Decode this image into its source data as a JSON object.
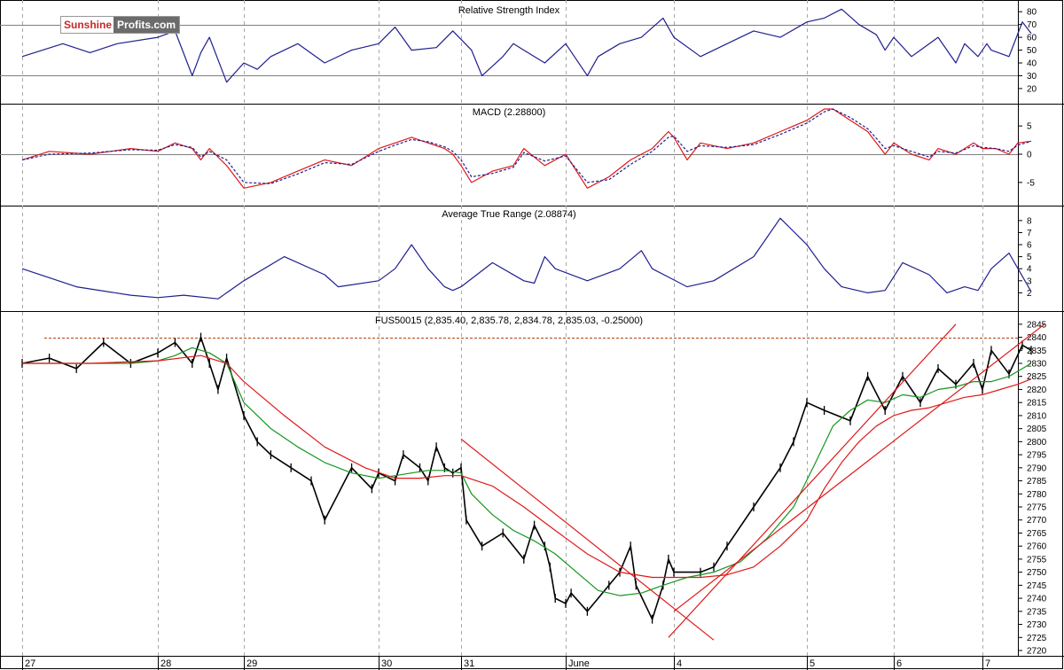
{
  "logo": {
    "part1": "Sunshine",
    "part2": "Profits.com"
  },
  "colors": {
    "blue": "#1f1f8f",
    "red": "#e01818",
    "green": "#14961e",
    "black": "#000000",
    "grid": "#a8a8a8",
    "ref": "#7f7f7f",
    "resistance": "#b7410e"
  },
  "x_axis": {
    "labels": [
      "27",
      "28",
      "29",
      "30",
      "31",
      "June",
      "4",
      "5",
      "6",
      "7"
    ],
    "last_index": 9.55
  },
  "chart_data": [
    {
      "type": "line",
      "title": "Relative Strength Index",
      "y_ticks": [
        20,
        30,
        40,
        50,
        60,
        70,
        80
      ],
      "ylim": [
        13,
        85
      ],
      "ref_lines": [
        30,
        70
      ],
      "series": [
        {
          "color": "#1f1f8f",
          "x": [
            0,
            0.3,
            0.5,
            0.7,
            1.0,
            1.2,
            1.4,
            1.5,
            1.6,
            1.8,
            2.0,
            2.1,
            2.2,
            2.4,
            2.6,
            2.8,
            3.0,
            3.2,
            3.4,
            3.7,
            3.9,
            4.1,
            4.2,
            4.4,
            4.5,
            4.6,
            4.8,
            5.0,
            5.2,
            5.3,
            5.5,
            5.7,
            5.9,
            6.0,
            6.2,
            6.4,
            6.6,
            6.8,
            7.0,
            7.2,
            7.4,
            7.6,
            7.8,
            7.9,
            8.0,
            8.2,
            8.3,
            8.5,
            8.7,
            8.8,
            8.95,
            9.05,
            9.1,
            9.3,
            9.45,
            9.55
          ],
          "y": [
            45,
            55,
            48,
            55,
            60,
            65,
            30,
            48,
            60,
            25,
            40,
            35,
            45,
            55,
            40,
            50,
            55,
            68,
            50,
            52,
            65,
            50,
            30,
            45,
            55,
            50,
            40,
            55,
            30,
            45,
            55,
            60,
            75,
            60,
            45,
            55,
            65,
            60,
            72,
            75,
            82,
            70,
            62,
            50,
            60,
            45,
            50,
            60,
            40,
            55,
            45,
            55,
            50,
            45,
            72,
            63
          ]
        }
      ]
    },
    {
      "type": "line",
      "title": "MACD (2.28800)",
      "y_ticks": [
        -5,
        0,
        5
      ],
      "ylim": [
        -8,
        8
      ],
      "ref_lines": [
        0
      ],
      "series": [
        {
          "color": "#e01818",
          "x": [
            0,
            0.2,
            0.5,
            0.8,
            1.0,
            1.2,
            1.4,
            1.5,
            1.6,
            1.8,
            2.0,
            2.2,
            2.4,
            2.6,
            2.8,
            3.0,
            3.2,
            3.4,
            3.6,
            3.8,
            3.9,
            4.0,
            4.1,
            4.3,
            4.5,
            4.6,
            4.8,
            5.0,
            5.2,
            5.4,
            5.6,
            5.8,
            5.95,
            6.0,
            6.1,
            6.2,
            6.4,
            6.6,
            6.8,
            7.0,
            7.2,
            7.3,
            7.5,
            7.7,
            7.8,
            7.9,
            8.0,
            8.2,
            8.4,
            8.5,
            8.7,
            8.9,
            9.0,
            9.15,
            9.3,
            9.4,
            9.55
          ],
          "y": [
            -1,
            0.5,
            0,
            1,
            0.5,
            2,
            1,
            -1,
            1,
            -2,
            -6,
            -5,
            -3,
            -1,
            -2,
            1,
            2,
            3,
            2,
            1,
            0,
            -2,
            -5,
            -3,
            -2,
            1,
            -2,
            0,
            -6,
            -4,
            -1,
            1,
            4,
            3,
            -1,
            2,
            1,
            2,
            4,
            6,
            8,
            8,
            6,
            4,
            2,
            0,
            2,
            0,
            -1,
            1,
            0,
            2,
            1,
            1,
            0,
            2,
            2.3
          ]
        },
        {
          "color": "#1f1f8f",
          "dash": true,
          "x": [
            0,
            0.2,
            0.5,
            0.8,
            1.0,
            1.2,
            1.4,
            1.5,
            1.6,
            1.8,
            2.0,
            2.2,
            2.4,
            2.6,
            2.8,
            3.0,
            3.2,
            3.4,
            3.6,
            3.8,
            3.9,
            4.0,
            4.1,
            4.3,
            4.5,
            4.6,
            4.8,
            5.0,
            5.2,
            5.4,
            5.6,
            5.8,
            5.95,
            6.0,
            6.1,
            6.2,
            6.4,
            6.6,
            6.8,
            7.0,
            7.2,
            7.3,
            7.5,
            7.7,
            7.8,
            7.9,
            8.0,
            8.2,
            8.4,
            8.5,
            8.7,
            8.9,
            9.0,
            9.15,
            9.3,
            9.4,
            9.55
          ],
          "y": [
            -1,
            0,
            0.2,
            0.8,
            0.7,
            1.7,
            1.2,
            -0.5,
            0.5,
            -1,
            -5,
            -5.2,
            -3.5,
            -1.5,
            -1.8,
            0.5,
            1.6,
            2.6,
            2.2,
            1.3,
            0.5,
            -1,
            -4,
            -3.4,
            -2.3,
            0.3,
            -1.2,
            -0.3,
            -5,
            -4.5,
            -1.8,
            0.5,
            3,
            3.2,
            0.5,
            1.5,
            1.2,
            1.7,
            3.5,
            5.5,
            7.5,
            8,
            6.5,
            4.5,
            2.8,
            1,
            1.5,
            0.5,
            -0.5,
            0.5,
            0.2,
            1.5,
            1.2,
            1,
            0.5,
            1.6,
            2.28
          ]
        }
      ]
    },
    {
      "type": "line",
      "title": "Average True Range (2.08874)",
      "y_ticks": [
        2,
        3,
        4,
        5,
        6,
        7,
        8
      ],
      "ylim": [
        1,
        8.8
      ],
      "ref_lines": [],
      "series": [
        {
          "color": "#1f1f8f",
          "x": [
            0,
            0.4,
            0.8,
            1.0,
            1.3,
            1.7,
            2.0,
            2.3,
            2.6,
            2.7,
            3.0,
            3.2,
            3.4,
            3.6,
            3.8,
            3.9,
            4.0,
            4.3,
            4.6,
            4.7,
            4.8,
            4.9,
            5.2,
            5.5,
            5.7,
            5.8,
            6.1,
            6.3,
            6.6,
            6.8,
            7.0,
            7.2,
            7.4,
            7.7,
            7.9,
            8.1,
            8.4,
            8.6,
            8.8,
            8.95,
            9.1,
            9.3,
            9.55
          ],
          "y": [
            4,
            2.5,
            1.8,
            1.6,
            1.8,
            1.5,
            3,
            5,
            3.5,
            2.5,
            3,
            4,
            6,
            4,
            2.5,
            2.2,
            2.5,
            4.5,
            3,
            2.8,
            5,
            4,
            3,
            4,
            5.5,
            4,
            2.5,
            3,
            5,
            8.2,
            6,
            4,
            2.5,
            2,
            2.2,
            4.5,
            3.5,
            2,
            2.5,
            2.2,
            4,
            5.3,
            2.1
          ]
        }
      ]
    },
    {
      "type": "line",
      "title": "FUS50015 (2,835.40, 2,835.78, 2,834.78, 2,835.03, -0.25000)",
      "y_ticks": [
        2720,
        2725,
        2730,
        2735,
        2740,
        2745,
        2750,
        2755,
        2760,
        2765,
        2770,
        2775,
        2780,
        2785,
        2790,
        2795,
        2800,
        2805,
        2810,
        2815,
        2820,
        2825,
        2830,
        2835,
        2840,
        2845
      ],
      "ylim": [
        2720,
        2848
      ],
      "resistance_level": 2840,
      "series": [
        {
          "name": "price",
          "color": "#000000",
          "x": [
            0,
            0.2,
            0.4,
            0.6,
            0.8,
            1.0,
            1.2,
            1.4,
            1.5,
            1.6,
            1.7,
            1.8,
            2.0,
            2.1,
            2.2,
            2.35,
            2.5,
            2.6,
            2.8,
            2.95,
            3.0,
            3.2,
            3.3,
            3.5,
            3.6,
            3.7,
            3.8,
            3.9,
            4.0,
            4.05,
            4.2,
            4.4,
            4.6,
            4.7,
            4.8,
            4.85,
            4.9,
            5.0,
            5.05,
            5.2,
            5.4,
            5.5,
            5.6,
            5.65,
            5.8,
            5.9,
            5.95,
            6.0,
            6.2,
            6.3,
            6.4,
            6.6,
            6.8,
            6.9,
            7.0,
            7.2,
            7.5,
            7.7,
            7.9,
            8.1,
            8.3,
            8.5,
            8.7,
            8.9,
            9.0,
            9.1,
            9.3,
            9.45,
            9.55
          ],
          "y": [
            2830,
            2832,
            2828,
            2838,
            2830,
            2834,
            2838,
            2830,
            2840,
            2830,
            2820,
            2832,
            2810,
            2800,
            2795,
            2790,
            2785,
            2770,
            2790,
            2782,
            2788,
            2785,
            2795,
            2790,
            2785,
            2798,
            2790,
            2788,
            2790,
            2770,
            2760,
            2765,
            2755,
            2768,
            2760,
            2752,
            2740,
            2738,
            2742,
            2735,
            2745,
            2750,
            2760,
            2745,
            2732,
            2745,
            2755,
            2750,
            2750,
            2752,
            2760,
            2775,
            2790,
            2800,
            2815,
            2812,
            2808,
            2825,
            2812,
            2825,
            2815,
            2828,
            2822,
            2830,
            2820,
            2835,
            2826,
            2837,
            2835
          ]
        },
        {
          "name": "ma-short",
          "color": "#14961e",
          "x": [
            0,
            0.4,
            0.8,
            1.0,
            1.2,
            1.4,
            1.6,
            1.8,
            2.0,
            2.2,
            2.4,
            2.6,
            2.8,
            3.0,
            3.2,
            3.4,
            3.6,
            3.8,
            4.0,
            4.1,
            4.3,
            4.5,
            4.7,
            4.9,
            5.1,
            5.3,
            5.5,
            5.7,
            5.9,
            6.1,
            6.3,
            6.5,
            6.7,
            6.9,
            7.1,
            7.3,
            7.5,
            7.7,
            7.9,
            8.1,
            8.3,
            8.5,
            8.7,
            8.9,
            9.1,
            9.3,
            9.55
          ],
          "y": [
            2830,
            2830,
            2830,
            2831,
            2833,
            2836,
            2834,
            2830,
            2815,
            2805,
            2798,
            2792,
            2788,
            2786,
            2787,
            2788,
            2789,
            2789,
            2788,
            2780,
            2772,
            2766,
            2762,
            2757,
            2750,
            2743,
            2741,
            2742,
            2745,
            2748,
            2750,
            2754,
            2763,
            2775,
            2792,
            2806,
            2812,
            2816,
            2815,
            2818,
            2817,
            2820,
            2821,
            2823,
            2823,
            2825,
            2830
          ]
        },
        {
          "name": "ma-long",
          "color": "#e01818",
          "x": [
            0,
            0.5,
            1.0,
            1.5,
            1.8,
            2.0,
            2.3,
            2.6,
            2.9,
            3.2,
            3.5,
            3.8,
            4.0,
            4.3,
            4.6,
            4.9,
            5.2,
            5.5,
            5.8,
            6.0,
            6.2,
            6.4,
            6.6,
            6.8,
            7.0,
            7.2,
            7.4,
            7.6,
            7.8,
            8.0,
            8.2,
            8.4,
            8.6,
            8.8,
            9.0,
            9.2,
            9.4,
            9.55
          ],
          "y": [
            2830,
            2830,
            2831,
            2833,
            2830,
            2823,
            2810,
            2798,
            2790,
            2786,
            2786,
            2787,
            2787,
            2783,
            2775,
            2766,
            2757,
            2750,
            2748,
            2748,
            2748,
            2749,
            2752,
            2760,
            2770,
            2782,
            2792,
            2800,
            2806,
            2810,
            2812,
            2813,
            2815,
            2817,
            2818,
            2820,
            2822,
            2824
          ]
        },
        {
          "name": "trend-down",
          "color": "#e01818",
          "x": [
            4.0,
            6.3
          ],
          "y": [
            2801,
            2724
          ]
        },
        {
          "name": "trend-up-1",
          "color": "#e01818",
          "x": [
            5.95,
            8.7
          ],
          "y": [
            2725,
            2845
          ]
        },
        {
          "name": "trend-up-2",
          "color": "#e01818",
          "x": [
            6.0,
            9.7
          ],
          "y": [
            2735,
            2845
          ]
        }
      ]
    }
  ]
}
